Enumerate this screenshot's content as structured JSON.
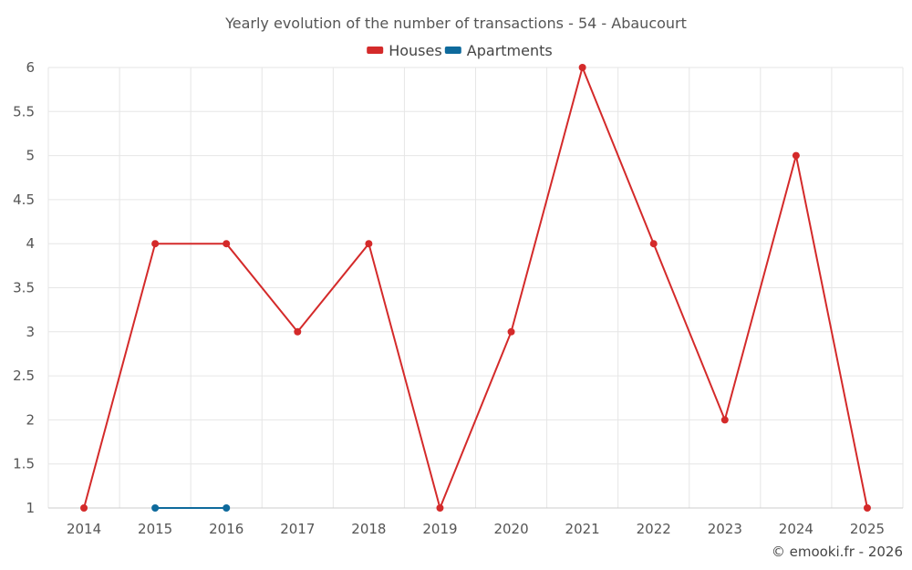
{
  "chart_data": {
    "type": "line",
    "title": "Yearly evolution of the number of transactions - 54 - Abaucourt",
    "x": [
      "2014",
      "2015",
      "2016",
      "2017",
      "2018",
      "2019",
      "2020",
      "2021",
      "2022",
      "2023",
      "2024",
      "2025"
    ],
    "ylim": [
      1,
      6
    ],
    "yticks": [
      "1",
      "1.5",
      "2",
      "2.5",
      "3",
      "3.5",
      "4",
      "4.5",
      "5",
      "5.5",
      "6"
    ],
    "grid": true,
    "legend_position": "top-center",
    "series": [
      {
        "name": "Houses",
        "color": "#d42a2a",
        "values": [
          1,
          4,
          4,
          3,
          4,
          1,
          3,
          6,
          4,
          2,
          5,
          1
        ]
      },
      {
        "name": "Apartments",
        "color": "#0e6a9c",
        "values": [
          null,
          1,
          1,
          null,
          null,
          null,
          null,
          null,
          null,
          null,
          null,
          null
        ]
      }
    ]
  },
  "credit": "© emooki.fr - 2026"
}
